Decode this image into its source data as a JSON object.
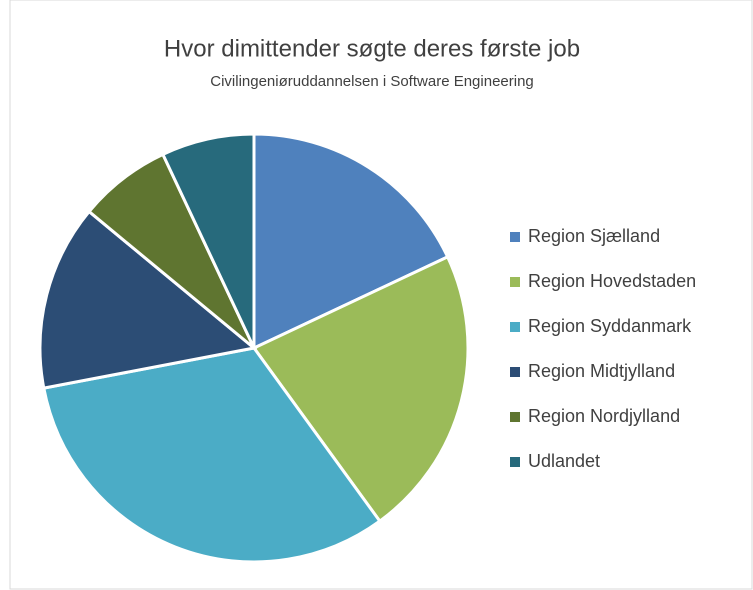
{
  "chart_data": {
    "type": "pie",
    "title": "Hvor dimittender søgte deres første job",
    "subtitle": "Civilingeniøruddannelsen i Software Engineering",
    "categories": [
      "Region Sjælland",
      "Region Hovedstaden",
      "Region Syddanmark",
      "Region Midtjylland",
      "Region Nordjylland",
      "Udlandet"
    ],
    "values": [
      18,
      22,
      32,
      14,
      7,
      7
    ],
    "colors": [
      "#4f81bd",
      "#9bbb59",
      "#4bacc6",
      "#2c4d75",
      "#5f7530",
      "#276a7c"
    ],
    "legend": "right"
  }
}
